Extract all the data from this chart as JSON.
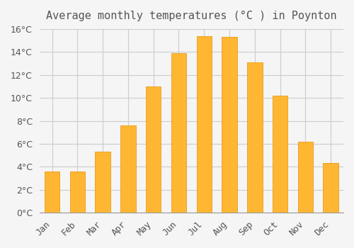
{
  "title": "Average monthly temperatures (°C ) in Poynton",
  "months": [
    "Jan",
    "Feb",
    "Mar",
    "Apr",
    "May",
    "Jun",
    "Jul",
    "Aug",
    "Sep",
    "Oct",
    "Nov",
    "Dec"
  ],
  "values": [
    3.6,
    3.6,
    5.3,
    7.6,
    11.0,
    13.9,
    15.4,
    15.3,
    13.1,
    10.2,
    6.2,
    4.3
  ],
  "bar_color": "#FFA500",
  "bar_edge_color": "#FF8C00",
  "background_color": "#F5F5F5",
  "grid_color": "#CCCCCC",
  "text_color": "#555555",
  "ylim": [
    0,
    16
  ],
  "yticks": [
    0,
    2,
    4,
    6,
    8,
    10,
    12,
    14,
    16
  ],
  "title_fontsize": 11,
  "tick_fontsize": 9,
  "bar_width": 0.6
}
